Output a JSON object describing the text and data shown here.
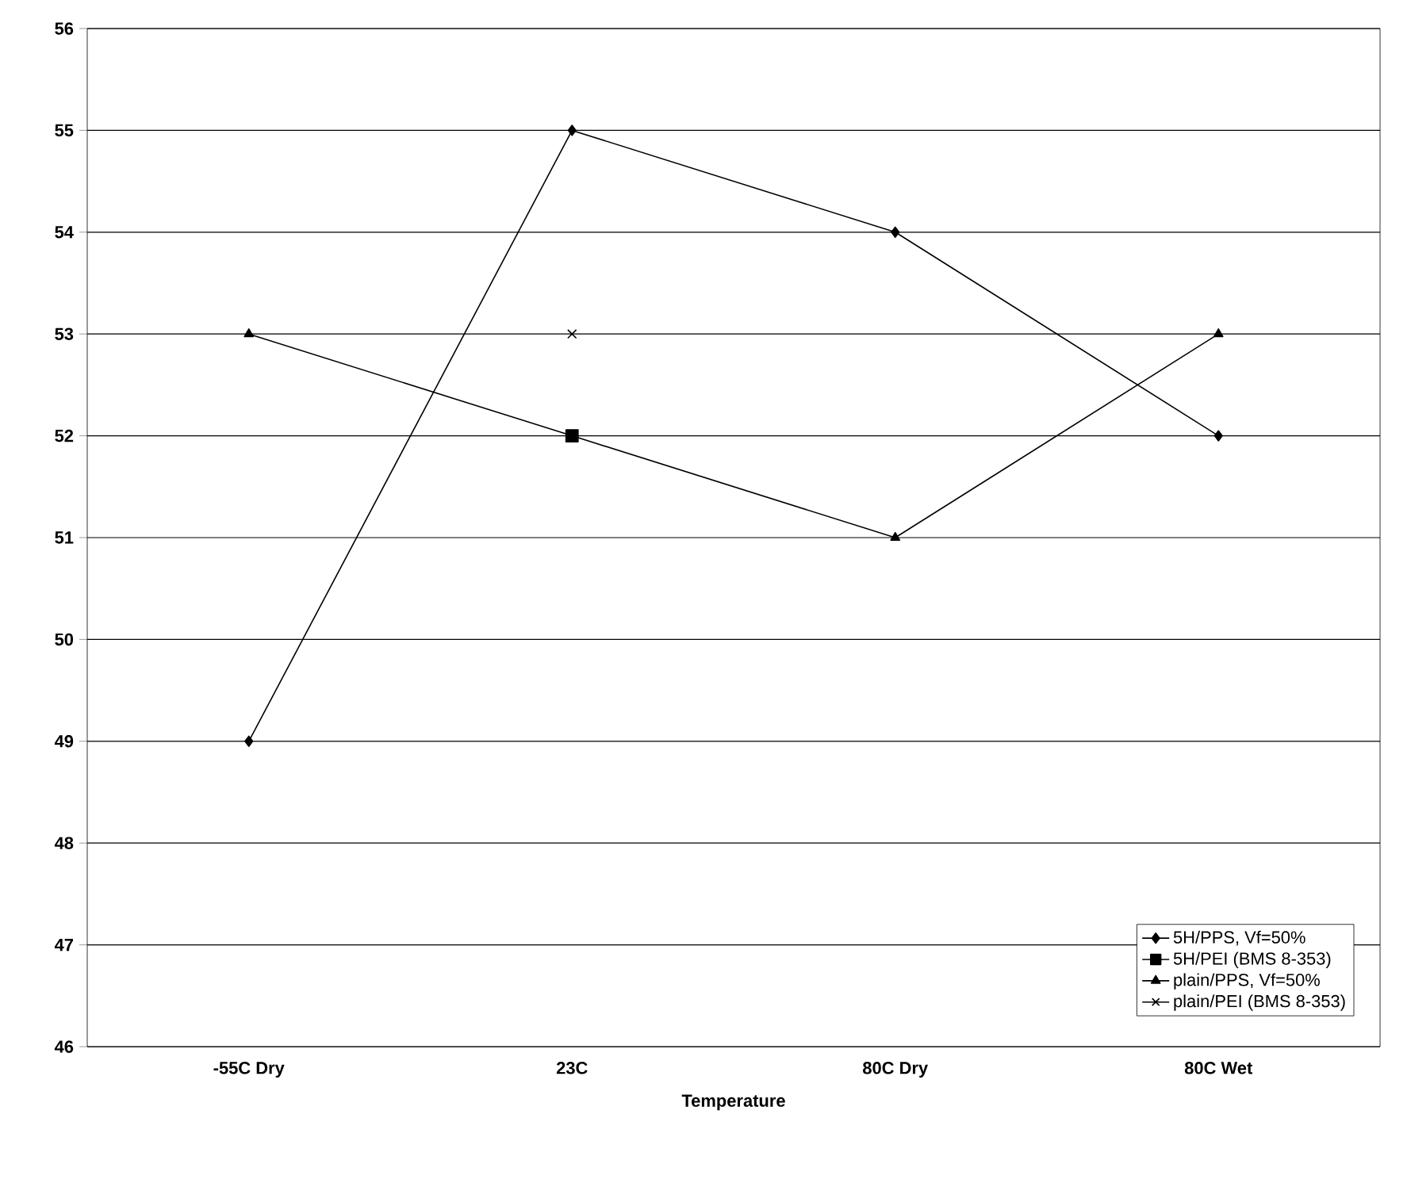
{
  "chart_data": {
    "type": "line",
    "xlabel": "Temperature",
    "categories": [
      "-55C Dry",
      "23C",
      "80C Dry",
      "80C Wet"
    ],
    "series": [
      {
        "name": "5H/PPS, Vf=50%",
        "color": "#000000",
        "marker": "diamond",
        "values": [
          49,
          55,
          54,
          52
        ]
      },
      {
        "name": "5H/PEI (BMS 8-353)",
        "color": "#000000",
        "marker": "square",
        "values": [
          null,
          52,
          null,
          null
        ]
      },
      {
        "name": "plain/PPS, Vf=50%",
        "color": "#000000",
        "marker": "triangle",
        "values": [
          53,
          52,
          51,
          53
        ]
      },
      {
        "name": "plain/PEI (BMS 8-353)",
        "color": "#000000",
        "marker": "cross",
        "values": [
          null,
          53,
          null,
          null
        ]
      }
    ],
    "ylim": [
      46,
      56
    ],
    "yticks": [
      46,
      47,
      48,
      49,
      50,
      51,
      52,
      53,
      54,
      55,
      56
    ],
    "grid": "y",
    "legend": "bottom right",
    "line_style": "solid"
  }
}
